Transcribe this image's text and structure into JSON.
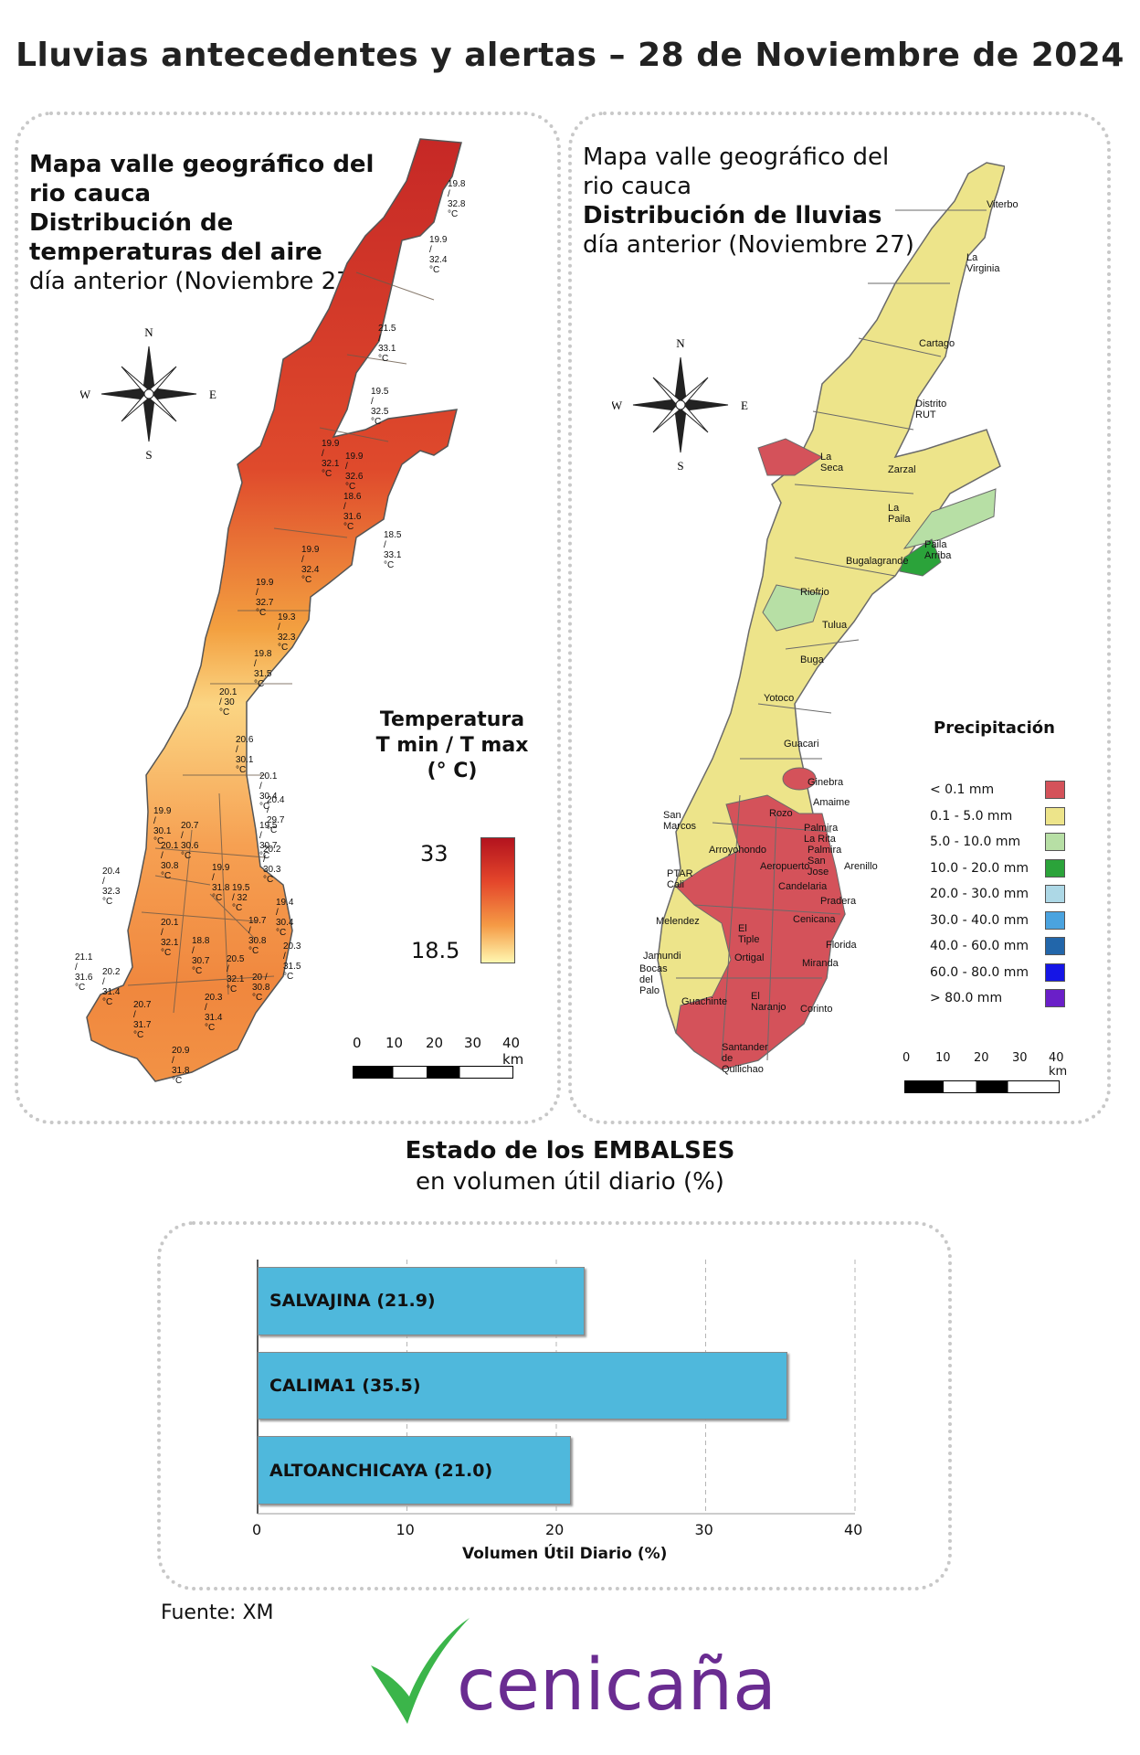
{
  "title": "Lluvias antecedentes y alertas – 28 de Noviembre de 2024",
  "temp_panel": {
    "title_line1": "Mapa valle geográfico del",
    "title_line2": "rio cauca",
    "title_line3": "Distribución de",
    "title_line4": "temperaturas del aire",
    "title_line5": "día anterior (Noviembre 27)",
    "compass": {
      "n": "N",
      "s": "S",
      "e": "E",
      "w": "W"
    },
    "legend_line1": "Temperatura",
    "legend_line2": "T min / T max",
    "legend_line3": "(° C)",
    "legend_max": "33",
    "legend_min": "18.5",
    "scale_labels": [
      "0",
      "10",
      "20",
      "30",
      "40 km"
    ],
    "stations": [
      "19.8 / 32.8 °C",
      "19.9 / 32.4 °C",
      "21.5 / 33.1 °C",
      "19.5 / 32.5 °C",
      "19.9 / 32.1 °C",
      "19.9 / 32.6 °C",
      "18.6 / 31.6 °C",
      "18.5 / 33.1 °C",
      "19.9 / 32.4 °C",
      "19.9 / 32.7 °C",
      "19.3 / 32.3 °C",
      "19.8 / 31.5 °C",
      "20.1 / 30 °C",
      "20.6 / 30.1 °C",
      "20.1 / 30.4 °C",
      "20.4 / 29.7 °C",
      "19.9 / 30.1 °C",
      "20.7 / 30.6 °C",
      "19.5 / 30.7 °C",
      "20.1 / 30.8 °C",
      "20.2 / 30.3 °C",
      "19.9 / 31.8 °C",
      "20.4 / 32.3 °C",
      "19.5 / 32 °C",
      "19.4 / 30.4 °C",
      "19.7 / 30.8 °C",
      "20.1 / 32.1 °C",
      "18.8 / 30.7 °C",
      "20.3 / 31.5 °C",
      "21.1 / 31.6 °C",
      "20.5 / 32.1 °C",
      "20.2 / 31.4 °C",
      "20 / 30.8 °C",
      "20.3 / 31.4 °C",
      "20.7 / 31.7 °C",
      "20.9 / 31.8 °C"
    ]
  },
  "rain_panel": {
    "title_line1": "Mapa valle geográfico del",
    "title_line2": "rio cauca",
    "title_line3": "Distribución de lluvias",
    "title_line4": "día anterior (Noviembre 27)",
    "compass": {
      "n": "N",
      "s": "S",
      "e": "E",
      "w": "W"
    },
    "legend_title": "Precipitación",
    "legend": [
      {
        "label": "< 0.1 mm",
        "color": "#d4525a"
      },
      {
        "label": "0.1 - 5.0 mm",
        "color": "#ede48a"
      },
      {
        "label": "5.0 - 10.0 mm",
        "color": "#b7dfa5"
      },
      {
        "label": "10.0 - 20.0 mm",
        "color": "#2ba33a"
      },
      {
        "label": "20.0 - 30.0 mm",
        "color": "#add8e6"
      },
      {
        "label": "30.0 - 40.0 mm",
        "color": "#4aa3df"
      },
      {
        "label": "40.0 - 60.0 mm",
        "color": "#2266aa"
      },
      {
        "label": "60.0 - 80.0 mm",
        "color": "#1515e6"
      },
      {
        "label": "> 80.0 mm",
        "color": "#6a1fc8"
      }
    ],
    "places": [
      "Viterbo",
      "La Virginia",
      "Cartago",
      "Distrito RUT",
      "La Seca",
      "Zarzal",
      "La Paila",
      "Paila Arriba",
      "Bugalagrande",
      "Riofrio",
      "Tulua",
      "Buga",
      "Yotoco",
      "Guacari",
      "Ginebra",
      "Amaime",
      "San Marcos",
      "Rozo",
      "Palmira La Rita",
      "Arroyohondo",
      "Palmira San Jose",
      "Aeropuerto",
      "Arenillo",
      "PTAR Cali",
      "Candelaria",
      "Pradera",
      "Melendez",
      "El Tiple",
      "Cenicana",
      "Florida",
      "Jamundi",
      "Bocas del Palo",
      "Ortigal",
      "Miranda",
      "Guachinte",
      "El Naranjo",
      "Corinto",
      "Santander de Quilichao"
    ],
    "scale_labels": [
      "0",
      "10",
      "20",
      "30",
      "40 km"
    ]
  },
  "reservoirs": {
    "title": "Estado de los EMBALSES",
    "subtitle": "en volumen útil diario (%)",
    "x_label": "Volumen Útil Diario (%)",
    "x_ticks": [
      "0",
      "10",
      "20",
      "30",
      "40"
    ]
  },
  "chart_data": {
    "type": "bar",
    "orientation": "horizontal",
    "categories": [
      "SALVAJINA (21.9)",
      "CALIMA1 (35.5)",
      "ALTOANCHICAYA (21.0)"
    ],
    "values": [
      21.9,
      35.5,
      21.0
    ],
    "xlabel": "Volumen Útil Diario (%)",
    "xlim": [
      0,
      40
    ],
    "color": "#4fb8dc",
    "grid": "vertical dashed"
  },
  "source": "Fuente: XM",
  "logo_text": "cenicaña",
  "colors": {
    "logo_green": "#3bb54a",
    "logo_purple": "#6a2c91"
  }
}
